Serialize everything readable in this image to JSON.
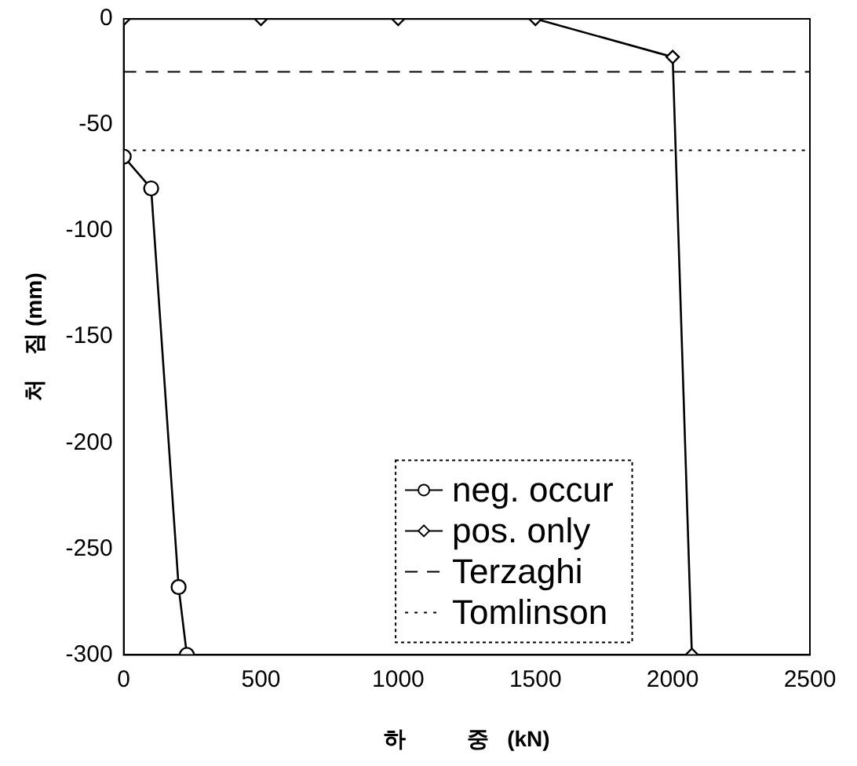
{
  "chart_data": {
    "type": "line",
    "xlabel": "하          중   (kN)",
    "ylabel": "처    짐 (mm)",
    "xlim": [
      0,
      2500
    ],
    "xticks": [
      0,
      500,
      1000,
      1500,
      2000,
      2500
    ],
    "ylim": [
      -300,
      0
    ],
    "yticks": [
      -300,
      -250,
      -200,
      -150,
      -100,
      -50,
      0
    ],
    "grid": false,
    "legend": "bottom",
    "series": [
      {
        "name": "neg. occur",
        "color": "#000000",
        "marker": "circle",
        "x": [
          0,
          100,
          200,
          230
        ],
        "values": [
          -65,
          -80,
          -268,
          -300
        ]
      },
      {
        "name": "pos. only",
        "color": "#000000",
        "marker": "diamond",
        "x": [
          0,
          500,
          1000,
          1500,
          2000,
          2070
        ],
        "values": [
          0,
          0,
          0,
          0,
          -18,
          -300
        ]
      }
    ],
    "ref_lines": [
      {
        "axis": "y",
        "value": -25,
        "label": "Terzaghi",
        "color": "#000000",
        "line_style": "dashed"
      },
      {
        "axis": "y",
        "value": -62,
        "label": "Tomlinson",
        "color": "#000000",
        "line_style": "dotted"
      }
    ]
  }
}
